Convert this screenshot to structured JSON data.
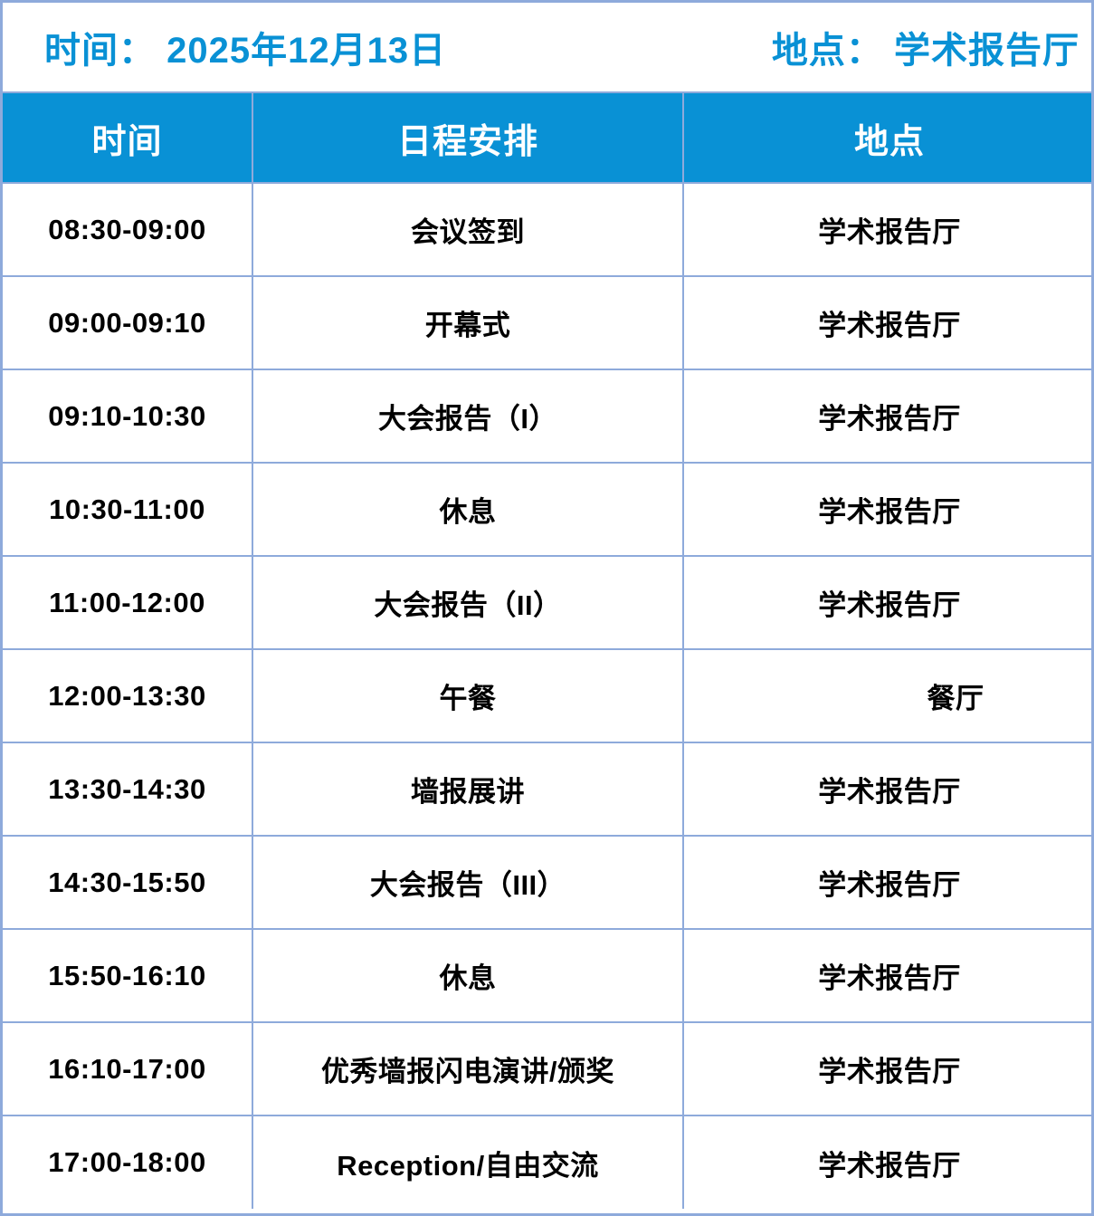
{
  "title_bar": {
    "date": "时间： 2025年12月13日",
    "venue": "地点： 学术报告厅"
  },
  "schedule_table": {
    "headers": [
      "时间",
      "日程安排",
      "地点"
    ],
    "rows": [
      {
        "time": "08:30-09:00",
        "event": "会议签到",
        "location": "学术报告厅"
      },
      {
        "time": "09:00-09:10",
        "event": "开幕式",
        "location": "学术报告厅"
      },
      {
        "time": "09:10-10:30",
        "event": "大会报告（I）",
        "location": "学术报告厅"
      },
      {
        "time": "10:30-11:00",
        "event": "休息",
        "location": "学术报告厅"
      },
      {
        "time": "11:00-12:00",
        "event": "大会报告（II）",
        "location": "学术报告厅"
      },
      {
        "time": "12:00-13:30",
        "event": "午餐",
        "location": "餐厅"
      },
      {
        "time": "13:30-14:30",
        "event": "墙报展讲",
        "location": "学术报告厅"
      },
      {
        "time": "14:30-15:50",
        "event": "大会报告（III）",
        "location": "学术报告厅"
      },
      {
        "time": "15:50-16:10",
        "event": "休息",
        "location": "学术报告厅"
      },
      {
        "time": "16:10-17:00",
        "event": "优秀墙报闪电演讲/颁奖",
        "location": "学术报告厅"
      },
      {
        "time": "17:00-18:00",
        "event": "Reception/自由交流",
        "location": "学术报告厅"
      }
    ]
  },
  "colors": {
    "accent_blue": "#0991d5",
    "border_blue": "#8eaadb",
    "header_text": "#ffffff",
    "body_text": "#000000"
  }
}
